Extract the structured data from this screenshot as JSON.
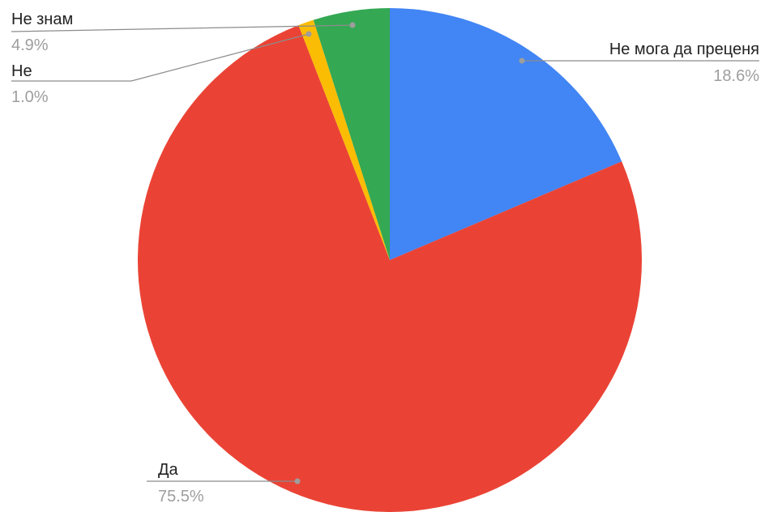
{
  "chart_data": {
    "type": "pie",
    "slices": [
      {
        "label": "Не мога да преценя",
        "value": 18.6,
        "percent_label": "18.6%",
        "color": "#4285F4"
      },
      {
        "label": "Да",
        "value": 75.5,
        "percent_label": "75.5%",
        "color": "#EA4335"
      },
      {
        "label": "Не",
        "value": 1.0,
        "percent_label": "1.0%",
        "color": "#FBBC04"
      },
      {
        "label": "Не знам",
        "value": 4.9,
        "percent_label": "4.9%",
        "color": "#34A853"
      }
    ],
    "start_angle": "12 o'clock",
    "direction": "clockwise",
    "labels": "outside with leader lines",
    "legend": "none"
  }
}
